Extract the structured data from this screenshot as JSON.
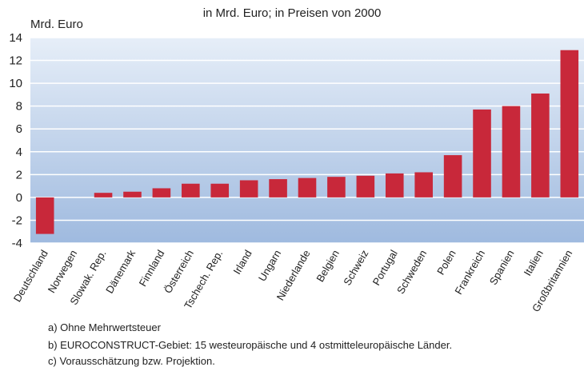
{
  "chart_data": {
    "type": "bar",
    "title": "in Mrd. Euro; in Preisen von 2000",
    "y_label": "Mrd. Euro",
    "categories": [
      "Deutschland",
      "Norwegen",
      "Slowak. Rep.",
      "Dänemark",
      "Finnland",
      "Österreich",
      "Tschech. Rep.",
      "Irland",
      "Ungarn",
      "Niederlande",
      "Belgien",
      "Schweiz",
      "Portugal",
      "Schweden",
      "Polen",
      "Frankreich",
      "Spanien",
      "Italien",
      "Großbritannien"
    ],
    "values": [
      -3.2,
      0,
      0.4,
      0.5,
      0.8,
      1.2,
      1.2,
      1.5,
      1.6,
      1.7,
      1.8,
      1.9,
      2.1,
      2.2,
      3.7,
      7.7,
      8.0,
      9.1,
      12.9
    ],
    "color": "#c8283a",
    "ylim": [
      -4,
      14
    ],
    "yticks": [
      -4,
      -2,
      0,
      2,
      4,
      6,
      8,
      10,
      12,
      14
    ],
    "grid": true,
    "footnotes": [
      "a) Ohne Mehrwertsteuer",
      "b) EUROCONSTRUCT-Gebiet: 15 westeuropäische und 4 ostmitteleuropäische Länder.",
      "c) Vorausschätzung bzw. Projektion."
    ]
  }
}
